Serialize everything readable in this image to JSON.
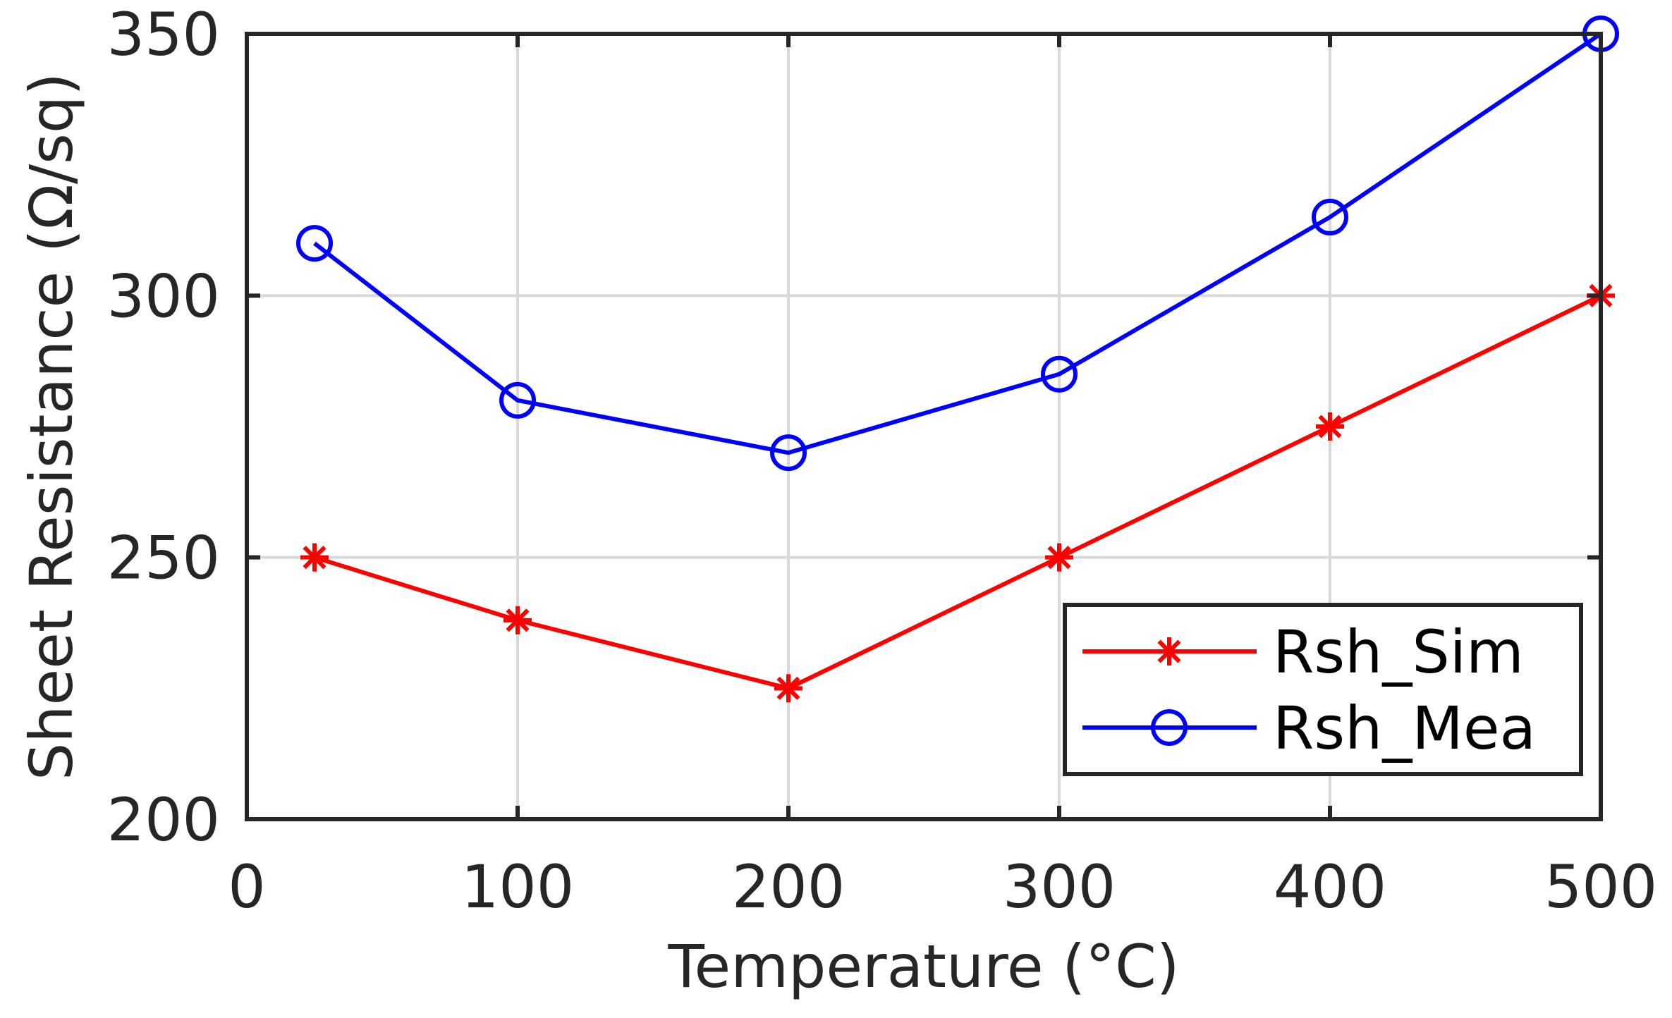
{
  "chart_data": {
    "type": "line",
    "title": "",
    "xlabel": "Temperature (°C)",
    "ylabel": "Sheet Resistance (Ω/sq)",
    "xlim": [
      0,
      500
    ],
    "ylim": [
      200,
      350
    ],
    "xticks": [
      0,
      100,
      200,
      300,
      400,
      500
    ],
    "yticks": [
      200,
      250,
      300,
      350
    ],
    "xtick_labels": [
      "0",
      "100",
      "200",
      "300",
      "400",
      "500"
    ],
    "ytick_labels": [
      "200",
      "250",
      "300",
      "350"
    ],
    "grid": true,
    "legend_position": "bottom-right",
    "x": [
      25,
      100,
      200,
      300,
      400,
      500
    ],
    "series": [
      {
        "name": "Rsh_Sim",
        "color": "#ff0000",
        "marker": "asterisk",
        "values": [
          250,
          238,
          225,
          250,
          275,
          300
        ]
      },
      {
        "name": "Rsh_Mea",
        "color": "#0000ff",
        "marker": "circle",
        "values": [
          310,
          280,
          270,
          285,
          315,
          350
        ]
      }
    ]
  }
}
